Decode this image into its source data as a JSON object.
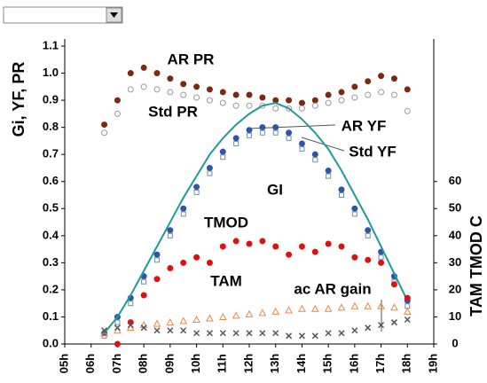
{
  "chart_data": {
    "type": "scatter",
    "x": [
      6.5,
      7,
      7.5,
      8,
      8.5,
      9,
      9.5,
      10,
      10.5,
      11,
      11.5,
      12,
      12.5,
      13,
      13.5,
      14,
      14.5,
      15,
      15.5,
      16,
      16.5,
      17,
      17.5,
      18
    ],
    "y_label": "Gi, YF, PR",
    "y2_label": "TAM TMOD C",
    "xlim": [
      5,
      19
    ],
    "xticks": [
      {
        "value": 5,
        "label": "05h"
      },
      {
        "value": 6,
        "label": "06h"
      },
      {
        "value": 7,
        "label": "07h"
      },
      {
        "value": 8,
        "label": "08h"
      },
      {
        "value": 9,
        "label": "09h"
      },
      {
        "value": 10,
        "label": "10h"
      },
      {
        "value": 11,
        "label": "11h"
      },
      {
        "value": 12,
        "label": "12h"
      },
      {
        "value": 13,
        "label": "13h"
      },
      {
        "value": 14,
        "label": "14h"
      },
      {
        "value": 15,
        "label": "15h"
      },
      {
        "value": 16,
        "label": "16h"
      },
      {
        "value": 17,
        "label": "17h"
      },
      {
        "value": 18,
        "label": "18h"
      },
      {
        "value": 19,
        "label": "19h"
      }
    ],
    "ylim": [
      0,
      1.1
    ],
    "yticks": [
      {
        "value": 0,
        "label": "0.0"
      },
      0.1,
      0.2,
      0.3,
      0.4,
      0.5,
      0.6,
      0.7,
      0.8,
      0.9,
      {
        "value": 1,
        "label": "1.0"
      },
      1.1
    ],
    "y2lim": [
      0,
      110
    ],
    "y2ticks": [
      0,
      10,
      20,
      30,
      40,
      50,
      60
    ],
    "series": [
      {
        "name": "AR PR",
        "color": "#7a2a10",
        "marker": "circle",
        "filled": true,
        "values": [
          0.81,
          0.9,
          1.0,
          1.02,
          1.0,
          0.98,
          0.96,
          0.95,
          0.94,
          0.93,
          0.92,
          0.92,
          0.91,
          0.9,
          0.9,
          0.89,
          0.9,
          0.92,
          0.93,
          0.95,
          0.97,
          0.99,
          0.98,
          0.94
        ]
      },
      {
        "name": "Std PR",
        "color": "#999999",
        "marker": "circle",
        "filled": false,
        "values": [
          0.78,
          0.85,
          0.94,
          0.95,
          0.94,
          0.93,
          0.92,
          0.91,
          0.9,
          0.89,
          0.88,
          0.88,
          0.88,
          0.87,
          0.87,
          0.87,
          0.88,
          0.89,
          0.9,
          0.91,
          0.92,
          0.93,
          0.92,
          0.86
        ]
      },
      {
        "name": "AR YF",
        "color": "#2f55a8",
        "marker": "circle",
        "filled": true,
        "values": [
          0.04,
          0.1,
          0.17,
          0.25,
          0.33,
          0.42,
          0.5,
          0.58,
          0.65,
          0.71,
          0.76,
          0.79,
          0.8,
          0.8,
          0.78,
          0.74,
          0.7,
          0.64,
          0.57,
          0.5,
          0.42,
          0.34,
          0.25,
          0.16
        ]
      },
      {
        "name": "Std YF",
        "color": "#6f8fa8",
        "marker": "square",
        "filled": false,
        "values": [
          0.03,
          0.08,
          0.15,
          0.23,
          0.31,
          0.4,
          0.48,
          0.56,
          0.63,
          0.69,
          0.74,
          0.77,
          0.78,
          0.78,
          0.76,
          0.72,
          0.68,
          0.62,
          0.55,
          0.48,
          0.4,
          0.32,
          0.23,
          0.14
        ]
      },
      {
        "name": "GI",
        "color": "#1f9a9a",
        "marker": "line",
        "values": [
          0.04,
          0.1,
          0.18,
          0.27,
          0.36,
          0.45,
          0.54,
          0.62,
          0.7,
          0.76,
          0.81,
          0.85,
          0.88,
          0.89,
          0.87,
          0.83,
          0.78,
          0.72,
          0.64,
          0.55,
          0.46,
          0.36,
          0.26,
          0.16
        ]
      },
      {
        "name": "TMOD",
        "color": "#e01010",
        "marker": "circle",
        "filled": true,
        "axis": "y2",
        "values": [
          null,
          0,
          8,
          18,
          24,
          28,
          30,
          32,
          30,
          36,
          38,
          37,
          38,
          36,
          33,
          36,
          34,
          37,
          36,
          32,
          31,
          30,
          22,
          17
        ]
      },
      {
        "name": "TAM",
        "color": "#e8874a",
        "marker": "triangle",
        "filled": false,
        "axis": "y2",
        "values": [
          4,
          5,
          6,
          7,
          7.5,
          8,
          8.5,
          9,
          9.5,
          10,
          10.5,
          11,
          11.5,
          12,
          12.5,
          13,
          13,
          13,
          13.5,
          14,
          14,
          14,
          13.5,
          12
        ]
      },
      {
        "name": "ac AR gain",
        "color": "#555555",
        "marker": "x",
        "filled": false,
        "values": [
          0.05,
          0.06,
          0.07,
          0.06,
          0.05,
          0.05,
          0.05,
          0.04,
          0.04,
          0.04,
          0.04,
          0.04,
          0.04,
          0.04,
          0.03,
          0.03,
          0.03,
          0.04,
          0.04,
          0.05,
          0.06,
          0.07,
          0.08,
          0.09
        ]
      }
    ]
  }
}
